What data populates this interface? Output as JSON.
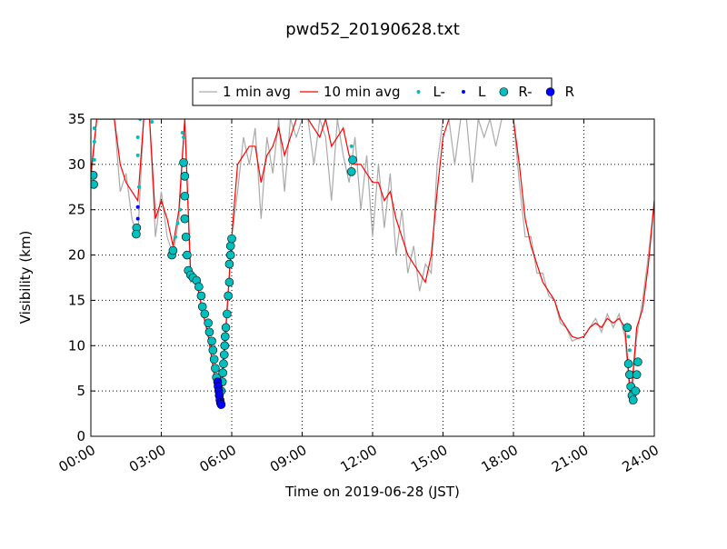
{
  "chart_data": {
    "type": "line",
    "title": "pwd52_20190628.txt",
    "xlabel": "Time on 2019-06-28 (JST)",
    "ylabel": "Visibility (km)",
    "xlim": [
      0,
      24
    ],
    "ylim": [
      0,
      35
    ],
    "xticks": [
      {
        "value": 0,
        "label": "00:00"
      },
      {
        "value": 3,
        "label": "03:00"
      },
      {
        "value": 6,
        "label": "06:00"
      },
      {
        "value": 9,
        "label": "09:00"
      },
      {
        "value": 12,
        "label": "12:00"
      },
      {
        "value": 15,
        "label": "15:00"
      },
      {
        "value": 18,
        "label": "18:00"
      },
      {
        "value": 21,
        "label": "21:00"
      },
      {
        "value": 24,
        "label": "24:00"
      }
    ],
    "yticks": [
      0,
      5,
      10,
      15,
      20,
      25,
      30,
      35
    ],
    "grid": true,
    "legend": "top",
    "series": [
      {
        "name": "1 min avg",
        "color": "#aaaaaa",
        "marker": "none",
        "x": [
          0,
          0.25,
          0.5,
          0.75,
          1,
          1.25,
          1.5,
          1.75,
          2,
          2.25,
          2.5,
          2.75,
          3,
          3.25,
          3.5,
          3.75,
          4,
          4.25,
          4.5,
          4.75,
          5,
          5.25,
          5.5,
          5.75,
          6,
          6.25,
          6.5,
          6.75,
          7,
          7.25,
          7.5,
          7.75,
          8,
          8.25,
          8.5,
          8.75,
          9,
          9.25,
          9.5,
          9.75,
          10,
          10.25,
          10.5,
          10.75,
          11,
          11.25,
          11.5,
          11.75,
          12,
          12.25,
          12.5,
          12.75,
          13,
          13.25,
          13.5,
          13.75,
          14,
          14.25,
          14.5,
          14.75,
          15,
          15.25,
          15.5,
          15.75,
          16,
          16.25,
          16.5,
          16.75,
          17,
          17.25,
          17.5,
          17.75,
          18,
          18.25,
          18.5,
          18.75,
          19,
          19.25,
          19.5,
          19.75,
          20,
          20.25,
          20.5,
          20.75,
          21,
          21.25,
          21.5,
          21.75,
          22,
          22.25,
          22.5,
          22.75,
          23,
          23.25,
          23.5,
          23.75,
          24
        ],
        "values": [
          28,
          35,
          35,
          35,
          35,
          27,
          29,
          24,
          22,
          35,
          35,
          22,
          27,
          22,
          20,
          24,
          35,
          17,
          17.5,
          13.5,
          11.5,
          6.5,
          3,
          11,
          22,
          27,
          33,
          30,
          34,
          24,
          33,
          29,
          35,
          27,
          35,
          33,
          35,
          35,
          30,
          35,
          33,
          26,
          35,
          31,
          28,
          33,
          25,
          31,
          22,
          30,
          23,
          29,
          20,
          25,
          18,
          21,
          16,
          19,
          18,
          30,
          35,
          35,
          30,
          35,
          35,
          28,
          35,
          33,
          35,
          32,
          35,
          35,
          35,
          28,
          22,
          22,
          18,
          18,
          15.5,
          15,
          12.5,
          12,
          10.5,
          10.8,
          11,
          12,
          13,
          11.5,
          13.5,
          12,
          13.5,
          11,
          3.5,
          11,
          15,
          20,
          26
        ]
      },
      {
        "name": "10 min avg",
        "color": "#ff0000",
        "marker": "none",
        "x": [
          0,
          0.25,
          0.5,
          0.75,
          1,
          1.25,
          1.5,
          1.75,
          2,
          2.25,
          2.5,
          2.75,
          3,
          3.25,
          3.5,
          3.75,
          4,
          4.25,
          4.5,
          4.75,
          5,
          5.25,
          5.5,
          5.75,
          6,
          6.25,
          6.5,
          6.75,
          7,
          7.25,
          7.5,
          7.75,
          8,
          8.25,
          8.5,
          8.75,
          9,
          9.25,
          9.5,
          9.75,
          10,
          10.25,
          10.5,
          10.75,
          11,
          11.25,
          11.5,
          11.75,
          12,
          12.25,
          12.5,
          12.75,
          13,
          13.25,
          13.5,
          13.75,
          14,
          14.25,
          14.5,
          14.75,
          15,
          15.25,
          15.5,
          15.75,
          16,
          16.25,
          16.5,
          16.75,
          17,
          17.25,
          17.5,
          17.75,
          18,
          18.25,
          18.5,
          18.75,
          19,
          19.25,
          19.5,
          19.75,
          20,
          20.25,
          20.5,
          20.75,
          21,
          21.25,
          21.5,
          21.75,
          22,
          22.25,
          22.5,
          22.75,
          23,
          23.25,
          23.5,
          23.75,
          24
        ],
        "values": [
          29,
          35,
          35,
          35,
          35,
          30,
          28,
          27,
          26,
          35,
          35,
          24,
          26,
          24,
          21,
          25,
          35,
          18,
          17,
          14,
          11,
          7,
          4,
          12,
          22,
          30,
          31,
          32,
          32,
          28,
          31,
          32,
          34,
          31,
          33,
          35,
          35,
          35,
          34,
          33,
          35,
          32,
          33,
          34,
          31,
          30,
          30,
          29,
          28,
          28,
          26,
          27,
          24,
          22,
          20,
          19,
          18,
          17,
          20,
          27,
          33,
          35,
          35,
          35,
          35,
          35,
          35,
          35,
          35,
          35,
          35,
          35,
          35,
          30,
          24,
          21,
          19,
          17,
          16,
          15,
          13,
          12,
          11,
          10.8,
          11,
          12,
          12.5,
          12,
          13,
          12.5,
          13,
          12,
          4,
          12,
          14,
          19,
          26
        ]
      },
      {
        "name": "L-",
        "color": "#00bfbf",
        "marker": "dot",
        "x": [
          0.15,
          0.15,
          0.15,
          2.0,
          2.05,
          2.0,
          2.1,
          2.6,
          3.6,
          3.7,
          3.8,
          3.9,
          3.95,
          4.05,
          11.1,
          22.9,
          22.95
        ],
        "values": [
          34,
          32.5,
          30.5,
          31,
          27.5,
          33,
          35,
          34.7,
          22,
          23.5,
          25,
          33.5,
          33,
          30,
          32,
          11,
          9.5
        ]
      },
      {
        "name": "L",
        "color": "#0000ff",
        "marker": "dot",
        "x": [
          2.0,
          2.0
        ],
        "values": [
          25.3,
          24
        ]
      },
      {
        "name": "R-",
        "color": "#00bfbf",
        "marker": "circle",
        "x": [
          0.1,
          0.12,
          1.95,
          1.93,
          3.45,
          3.5,
          3.95,
          4.0,
          4.0,
          4.0,
          4.05,
          4.1,
          4.15,
          4.25,
          4.35,
          4.5,
          4.6,
          4.7,
          4.75,
          4.85,
          5.0,
          5.05,
          5.15,
          5.2,
          5.25,
          5.3,
          5.35,
          5.55,
          5.6,
          5.62,
          5.65,
          5.68,
          5.7,
          5.72,
          5.75,
          5.8,
          5.85,
          5.9,
          5.9,
          5.95,
          5.95,
          6.0,
          11.15,
          11.1,
          22.85,
          22.9,
          22.95,
          23.0,
          23.05,
          23.1,
          23.2,
          23.25,
          23.3
        ],
        "values": [
          28.8,
          27.8,
          23,
          22.3,
          20,
          20.5,
          30.2,
          28.7,
          26.5,
          24,
          22,
          20,
          18.3,
          17.8,
          17.5,
          17.2,
          16.5,
          15.5,
          14.3,
          13.5,
          12.5,
          11.5,
          10.5,
          9.5,
          8.5,
          7.5,
          6.5,
          5,
          6,
          7,
          8,
          9,
          10,
          11,
          12,
          13.5,
          15.5,
          17,
          19,
          20,
          21,
          21.8,
          30.5,
          29.2,
          12,
          8,
          6.8,
          5.5,
          4.5,
          4,
          5,
          6.8,
          8.2
        ]
      },
      {
        "name": "R",
        "color": "#0000ff",
        "marker": "circle",
        "x": [
          5.4,
          5.42,
          5.45,
          5.47,
          5.5,
          5.52,
          5.55
        ],
        "values": [
          6,
          5.5,
          5,
          4.5,
          4,
          3.7,
          3.5
        ]
      }
    ]
  }
}
